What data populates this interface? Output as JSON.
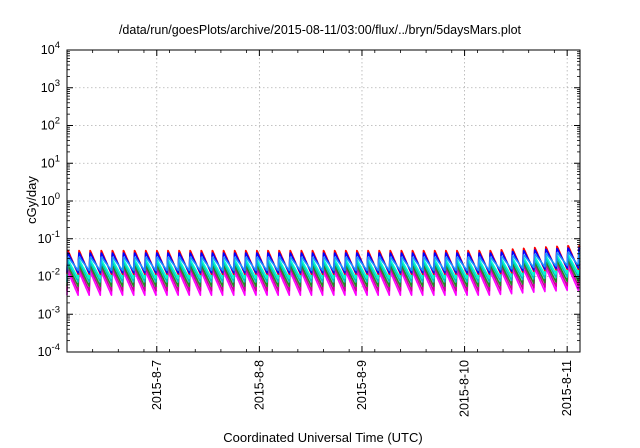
{
  "chart_data": {
    "type": "line",
    "title": "/data/run/goesPlots/archive/2015-08-11/03:00/flux/../bryn/5daysMars.plot",
    "xlabel": "Coordinated Universal Time (UTC)",
    "ylabel": "cGy/day",
    "yscale": "log",
    "ylim": [
      0.0001,
      10000
    ],
    "xlim": [
      "2015-08-06T03:00",
      "2015-08-11T03:00"
    ],
    "grid": true,
    "y_ticks": [
      {
        "value": 0.0001,
        "base": "10",
        "exp": "-4"
      },
      {
        "value": 0.001,
        "base": "10",
        "exp": "-3"
      },
      {
        "value": 0.01,
        "base": "10",
        "exp": "-2"
      },
      {
        "value": 0.1,
        "base": "10",
        "exp": "-1"
      },
      {
        "value": 1,
        "base": "10",
        "exp": "0"
      },
      {
        "value": 10,
        "base": "10",
        "exp": "1"
      },
      {
        "value": 100,
        "base": "10",
        "exp": "2"
      },
      {
        "value": 1000,
        "base": "10",
        "exp": "3"
      },
      {
        "value": 10000,
        "base": "10",
        "exp": "4"
      }
    ],
    "x_ticks": [
      {
        "value": "2015-08-07T00:00",
        "label": "2015-8-7"
      },
      {
        "value": "2015-08-08T00:00",
        "label": "2015-8-8"
      },
      {
        "value": "2015-08-09T00:00",
        "label": "2015-8-9"
      },
      {
        "value": "2015-08-10T00:00",
        "label": "2015-8-10"
      },
      {
        "value": "2015-08-11T00:00",
        "label": "2015-8-11"
      }
    ],
    "cycle_hours": 2.6,
    "series": [
      {
        "color": "#ff00ff",
        "peak": 0.0135,
        "trough": 0.0032
      },
      {
        "color": "#cc0099",
        "peak": 0.017,
        "trough": 0.0042
      },
      {
        "color": "#228b22",
        "peak": 0.02,
        "trough": 0.0055
      },
      {
        "color": "#00bfbf",
        "peak": 0.024,
        "trough": 0.0072
      },
      {
        "color": "#00ffd0",
        "peak": 0.028,
        "trough": 0.009
      },
      {
        "color": "#ff0000",
        "peak": 0.05,
        "trough": 0.0115
      },
      {
        "color": "#0000ff",
        "peak": 0.043,
        "trough": 0.0125
      },
      {
        "color": "#1e90ff",
        "peak": 0.033,
        "trough": 0.0145
      }
    ],
    "late_enhancement": {
      "start": "2015-08-10T06:00",
      "factor": 1.35
    }
  }
}
